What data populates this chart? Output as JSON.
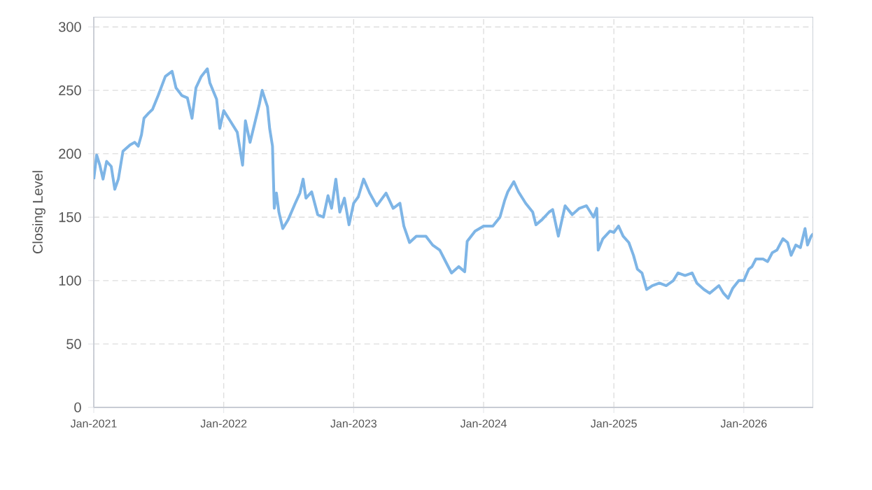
{
  "chart_data": {
    "type": "line",
    "ylabel": "Closing Level",
    "grid": true,
    "xlim": [
      "2021-01-01",
      "2026-07-15"
    ],
    "xticks": [
      {
        "value": "2021-01-01",
        "label": "Jan-2021"
      },
      {
        "value": "2022-01-01",
        "label": "Jan-2022"
      },
      {
        "value": "2023-01-01",
        "label": "Jan-2023"
      },
      {
        "value": "2024-01-01",
        "label": "Jan-2024"
      },
      {
        "value": "2025-01-01",
        "label": "Jan-2025"
      },
      {
        "value": "2026-01-01",
        "label": "Jan-2026"
      }
    ],
    "ylim": [
      0,
      308
    ],
    "yticks": [
      0,
      50,
      100,
      150,
      200,
      250,
      300
    ],
    "series": [
      {
        "color": "#7eb5e6",
        "x": [
          "2021-01-01",
          "2021-01-09",
          "2021-01-18",
          "2021-01-27",
          "2021-02-06",
          "2021-02-19",
          "2021-03-01",
          "2021-03-11",
          "2021-03-24",
          "2021-04-13",
          "2021-04-26",
          "2021-05-06",
          "2021-05-15",
          "2021-05-22",
          "2021-06-04",
          "2021-06-15",
          "2021-07-01",
          "2021-07-21",
          "2021-08-09",
          "2021-08-20",
          "2021-09-05",
          "2021-09-21",
          "2021-10-04",
          "2021-10-15",
          "2021-10-30",
          "2021-11-16",
          "2021-11-23",
          "2021-12-12",
          "2021-12-21",
          "2022-01-01",
          "2022-01-19",
          "2022-02-08",
          "2022-02-23",
          "2022-03-03",
          "2022-03-16",
          "2022-03-29",
          "2022-04-11",
          "2022-04-19",
          "2022-05-04",
          "2022-05-10",
          "2022-05-18",
          "2022-05-23",
          "2022-05-29",
          "2022-06-05",
          "2022-06-16",
          "2022-07-01",
          "2022-07-21",
          "2022-08-03",
          "2022-08-12",
          "2022-08-20",
          "2022-09-05",
          "2022-09-22",
          "2022-10-08",
          "2022-10-21",
          "2022-10-31",
          "2022-11-12",
          "2022-11-23",
          "2022-12-06",
          "2022-12-19",
          "2023-01-01",
          "2023-01-14",
          "2023-01-29",
          "2023-02-15",
          "2023-03-07",
          "2023-04-02",
          "2023-04-22",
          "2023-05-11",
          "2023-05-22",
          "2023-06-07",
          "2023-06-26",
          "2023-07-23",
          "2023-08-11",
          "2023-08-31",
          "2023-09-20",
          "2023-10-03",
          "2023-10-23",
          "2023-11-09",
          "2023-11-16",
          "2023-12-08",
          "2024-01-01",
          "2024-01-27",
          "2024-02-16",
          "2024-02-29",
          "2024-03-09",
          "2024-03-26",
          "2024-04-08",
          "2024-04-28",
          "2024-05-18",
          "2024-05-27",
          "2024-06-13",
          "2024-07-03",
          "2024-07-13",
          "2024-07-29",
          "2024-08-17",
          "2024-09-06",
          "2024-09-26",
          "2024-10-16",
          "2024-11-05",
          "2024-11-14",
          "2024-11-18",
          "2024-12-01",
          "2024-12-21",
          "2025-01-01",
          "2025-01-14",
          "2025-01-27",
          "2025-02-12",
          "2025-02-25",
          "2025-03-08",
          "2025-03-21",
          "2025-04-03",
          "2025-04-19",
          "2025-05-09",
          "2025-05-28",
          "2025-06-17",
          "2025-06-30",
          "2025-07-20",
          "2025-08-09",
          "2025-08-22",
          "2025-09-11",
          "2025-09-27",
          "2025-10-10",
          "2025-10-23",
          "2025-11-05",
          "2025-11-18",
          "2025-12-01",
          "2025-12-18",
          "2026-01-01",
          "2026-01-15",
          "2026-01-24",
          "2026-02-04",
          "2026-02-24",
          "2026-03-09",
          "2026-03-22",
          "2026-04-04",
          "2026-04-21",
          "2026-05-04",
          "2026-05-14",
          "2026-05-27",
          "2026-06-09",
          "2026-06-22",
          "2026-06-29",
          "2026-07-09",
          "2026-07-15"
        ],
        "values": [
          180,
          199,
          191,
          180,
          194,
          190,
          172,
          180,
          202,
          207,
          209,
          206,
          215,
          228,
          232,
          235,
          246,
          261,
          265,
          252,
          246,
          244,
          228,
          252,
          261,
          267,
          256,
          243,
          220,
          234,
          226,
          217,
          191,
          226,
          209,
          224,
          239,
          250,
          237,
          220,
          206,
          157,
          169,
          154,
          141,
          148,
          161,
          169,
          180,
          165,
          170,
          152,
          150,
          167,
          157,
          180,
          154,
          165,
          144,
          161,
          166,
          180,
          169,
          159,
          169,
          157,
          161,
          143,
          130,
          135,
          135,
          128,
          124,
          113,
          106,
          111,
          107,
          131,
          139,
          143,
          143,
          150,
          163,
          170,
          178,
          170,
          161,
          154,
          144,
          148,
          154,
          156,
          135,
          159,
          152,
          157,
          159,
          150,
          157,
          124,
          133,
          139,
          138,
          143,
          135,
          130,
          120,
          109,
          106,
          93,
          96,
          98,
          96,
          100,
          106,
          104,
          106,
          98,
          93,
          90,
          93,
          96,
          90,
          86,
          94,
          100,
          100,
          109,
          111,
          117,
          117,
          115,
          122,
          124,
          133,
          130,
          120,
          128,
          126,
          141,
          128,
          135,
          137
        ]
      }
    ]
  }
}
